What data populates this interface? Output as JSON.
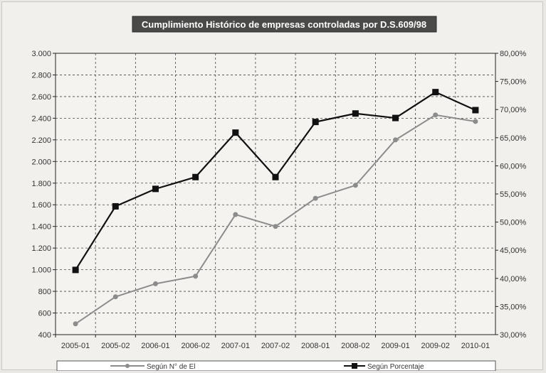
{
  "chart_data": {
    "type": "line",
    "title": "Cumplimiento Histórico de empresas controladas por D.S.609/98",
    "categories": [
      "2005-01",
      "2005-02",
      "2006-01",
      "2006-02",
      "2007-01",
      "2007-02",
      "2008-01",
      "2008-02",
      "2009-01",
      "2009-02",
      "2010-01"
    ],
    "y_left": {
      "ylim": [
        400,
        3000
      ],
      "tick_values": [
        400,
        600,
        800,
        1000,
        1200,
        1400,
        1600,
        1800,
        2000,
        2200,
        2400,
        2600,
        2800,
        3000
      ],
      "tick_labels": [
        "400",
        "600",
        "800",
        "1.000",
        "1.200",
        "1.400",
        "1.600",
        "1.800",
        "2.000",
        "2.200",
        "2.400",
        "2.600",
        "2.800",
        "3.000"
      ]
    },
    "y_right": {
      "ylim": [
        30,
        80
      ],
      "tick_values": [
        30,
        35,
        40,
        45,
        50,
        55,
        60,
        65,
        70,
        75,
        80
      ],
      "tick_labels": [
        "30,00%",
        "35,00%",
        "40,00%",
        "45,00%",
        "50,00%",
        "55,00%",
        "60,00%",
        "65,00%",
        "70,00%",
        "75,00%",
        "80,00%"
      ]
    },
    "series": [
      {
        "name": "Según N° de El",
        "axis": "left",
        "color": "#8c8c8c",
        "marker": "circle",
        "values": [
          500,
          750,
          870,
          940,
          1510,
          1400,
          1660,
          1780,
          2200,
          2430,
          2370
        ]
      },
      {
        "name": "Según Porcentaje",
        "axis": "right",
        "color": "#111111",
        "marker": "square",
        "values": [
          41.5,
          52.8,
          55.9,
          58.0,
          65.9,
          58.0,
          67.8,
          69.3,
          68.5,
          73.1,
          69.9
        ]
      }
    ],
    "grid": true,
    "legend_position": "bottom"
  }
}
